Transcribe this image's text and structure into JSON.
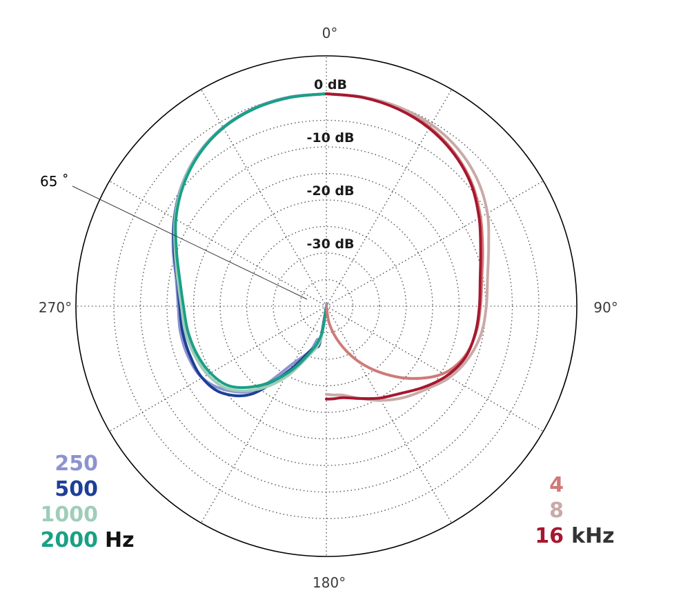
{
  "chart_data": {
    "type": "polar",
    "angle_labels": [
      {
        "angle": 0,
        "text": "0°"
      },
      {
        "angle": 90,
        "text": "90°"
      },
      {
        "angle": 180,
        "text": "180°"
      },
      {
        "angle": 270,
        "text": "270°"
      }
    ],
    "radial_range_db": [
      -40,
      0
    ],
    "radial_labels": [
      {
        "db": 0,
        "text": "0 dB"
      },
      {
        "db": -10,
        "text": "-10 dB"
      },
      {
        "db": -20,
        "text": "-20 dB"
      },
      {
        "db": -30,
        "text": "-30 dB"
      }
    ],
    "annotation": {
      "text": "65 ˚",
      "angle": 295
    },
    "legend_left": {
      "unit": "Hz",
      "items": [
        {
          "label": "250",
          "color": "#8c93cf"
        },
        {
          "label": "500",
          "color": "#1e3f97"
        },
        {
          "label": "1000",
          "color": "#9fcdb9"
        },
        {
          "label": "2000",
          "color": "#1aa085"
        }
      ]
    },
    "legend_right": {
      "unit": "kHz",
      "items": [
        {
          "label": "4",
          "color": "#cf7a77"
        },
        {
          "label": "8",
          "color": "#c9aaa8"
        },
        {
          "label": "16",
          "color": "#a5182f"
        }
      ]
    },
    "series": [
      {
        "name": "250",
        "half": "left",
        "color": "#8c93cf",
        "angles": [
          180,
          175,
          170,
          165,
          160,
          150,
          140,
          130,
          120,
          110,
          100,
          90,
          80,
          70,
          60,
          50,
          40,
          30,
          20,
          10,
          0
        ],
        "values": [
          -40,
          -40,
          -33.5,
          -33.5,
          -31,
          -27.6,
          -19.5,
          -15.4,
          -13,
          -12.3,
          -12.1,
          -12.1,
          -11.3,
          -9.3,
          -6.9,
          -4.5,
          -2.5,
          -1.1,
          -0.3,
          0,
          0
        ]
      },
      {
        "name": "500",
        "half": "left",
        "color": "#1e3f97",
        "angles": [
          180,
          170,
          165,
          160,
          150,
          140,
          130,
          120,
          110,
          100,
          90,
          80,
          70,
          60,
          50,
          40,
          30,
          20,
          10,
          0
        ],
        "values": [
          -40,
          -33,
          -32,
          -31,
          -26,
          -18.5,
          -14.5,
          -13,
          -12.7,
          -12.5,
          -12.4,
          -11.5,
          -9.5,
          -7,
          -4.6,
          -2.6,
          -1.2,
          -0.4,
          -0.1,
          0
        ]
      },
      {
        "name": "1000",
        "half": "left",
        "color": "#9fcdb9",
        "angles": [
          180,
          170,
          160,
          150,
          140,
          130,
          120,
          110,
          100,
          90,
          80,
          70,
          60,
          50,
          40,
          30,
          20,
          10,
          0
        ],
        "values": [
          -40,
          -33.5,
          -30,
          -24.5,
          -19.5,
          -15.8,
          -14.2,
          -13.5,
          -13,
          -12.7,
          -11.6,
          -9.7,
          -7.1,
          -4.6,
          -2.6,
          -1.2,
          -0.4,
          -0.1,
          0
        ]
      },
      {
        "name": "2000",
        "half": "left",
        "color": "#1aa085",
        "angles": [
          180,
          170,
          160,
          150,
          140,
          130,
          120,
          110,
          100,
          90,
          80,
          70,
          60,
          50,
          40,
          30,
          20,
          10,
          0
        ],
        "values": [
          -40,
          -34.5,
          -30.5,
          -25.5,
          -20.5,
          -16.5,
          -14.8,
          -14,
          -13.5,
          -13.1,
          -12,
          -10,
          -7.3,
          -4.8,
          -2.7,
          -1.2,
          -0.4,
          -0.1,
          0
        ]
      },
      {
        "name": "4",
        "half": "right",
        "color": "#cf7a77",
        "angles": [
          0,
          10,
          20,
          30,
          40,
          50,
          60,
          70,
          80,
          90,
          100,
          110,
          120,
          130,
          140,
          150,
          160,
          170,
          180
        ],
        "values": [
          0,
          -0.1,
          -0.4,
          -1.1,
          -2.4,
          -4.2,
          -6.5,
          -8.7,
          -10.3,
          -11,
          -11.4,
          -12.3,
          -14.6,
          -18.8,
          -23.5,
          -28,
          -32.5,
          -36.5,
          -40
        ]
      },
      {
        "name": "8",
        "half": "right",
        "color": "#c9aaa8",
        "angles": [
          0,
          10,
          20,
          30,
          40,
          50,
          60,
          70,
          80,
          90,
          100,
          110,
          120,
          130,
          140,
          150,
          160,
          170,
          175,
          180
        ],
        "values": [
          0,
          0,
          -0.1,
          -0.5,
          -1.4,
          -2.9,
          -5,
          -7.5,
          -9.2,
          -9.9,
          -10.4,
          -11.5,
          -13.2,
          -15.6,
          -17.5,
          -19.5,
          -21.5,
          -23,
          -23.2,
          -23.4
        ]
      },
      {
        "name": "16",
        "half": "right",
        "color": "#a5182f",
        "angles": [
          0,
          10,
          20,
          30,
          40,
          50,
          60,
          70,
          80,
          90,
          100,
          110,
          120,
          130,
          140,
          150,
          160,
          170,
          175,
          180
        ],
        "values": [
          0,
          -0.1,
          -0.5,
          -1.3,
          -2.6,
          -4.4,
          -6.8,
          -9.1,
          -10.6,
          -11.2,
          -11.5,
          -12.1,
          -13.8,
          -16.2,
          -18.5,
          -20,
          -21.5,
          -22.5,
          -22.5,
          -22.5
        ]
      }
    ]
  }
}
